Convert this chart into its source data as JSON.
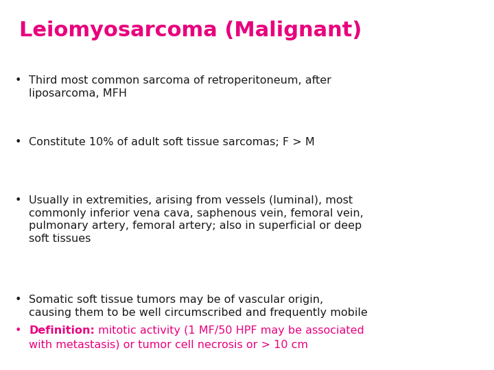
{
  "title": "Leiomyosarcoma (Malignant)",
  "title_color": "#E8007D",
  "title_fontsize": 22,
  "title_fontweight": "bold",
  "background_color": "#FFFFFF",
  "bullet_color": "#1a1a1a",
  "bullet_fontsize": 11.5,
  "definition_bold": "Definition:",
  "definition_rest": " mitotic activity (1 MF/50 HPF may be associated\nwith metastasis) or tumor cell necrosis or > 10 cm",
  "definition_color": "#E8007D",
  "bullets": [
    {
      "text": "Third most common sarcoma of retroperitoneum, after\nliposarcoma, MFH",
      "color": "#1a1a1a"
    },
    {
      "text": "Constitute 10% of adult soft tissue sarcomas; F > M",
      "color": "#1a1a1a"
    },
    {
      "text": "Usually in extremities, arising from vessels (luminal), most\ncommonly inferior vena cava, saphenous vein, femoral vein,\npulmonary artery, femoral artery; also in superficial or deep\nsoft tissues",
      "color": "#1a1a1a"
    },
    {
      "text": "Somatic soft tissue tumors may be of vascular origin,\ncausing them to be well circumscribed and frequently mobile",
      "color": "#1a1a1a"
    }
  ]
}
